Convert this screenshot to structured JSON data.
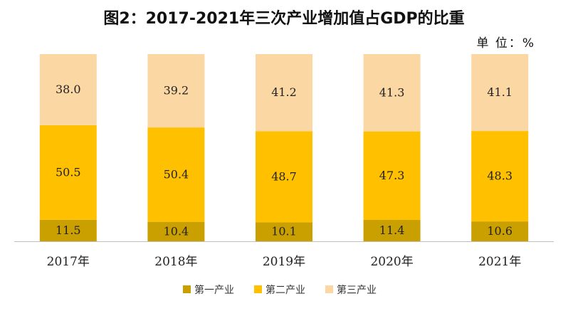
{
  "chart_data": {
    "type": "bar",
    "stacked": true,
    "title": "图2：2017-2021年三次产业增加值占GDP的比重",
    "unit_label": "单 位：%",
    "categories": [
      "2017年",
      "2018年",
      "2019年",
      "2020年",
      "2021年"
    ],
    "series": [
      {
        "name": "第一产业",
        "color": "#c9a000",
        "values": [
          11.5,
          10.4,
          10.1,
          11.4,
          10.6
        ]
      },
      {
        "name": "第二产业",
        "color": "#ffc000",
        "values": [
          50.5,
          50.4,
          48.7,
          47.3,
          48.3
        ]
      },
      {
        "name": "第三产业",
        "color": "#fbd7a4",
        "values": [
          38.0,
          39.2,
          41.2,
          41.3,
          41.1
        ]
      }
    ],
    "ylim": [
      0,
      100
    ],
    "legend_position": "bottom",
    "grid": false
  }
}
